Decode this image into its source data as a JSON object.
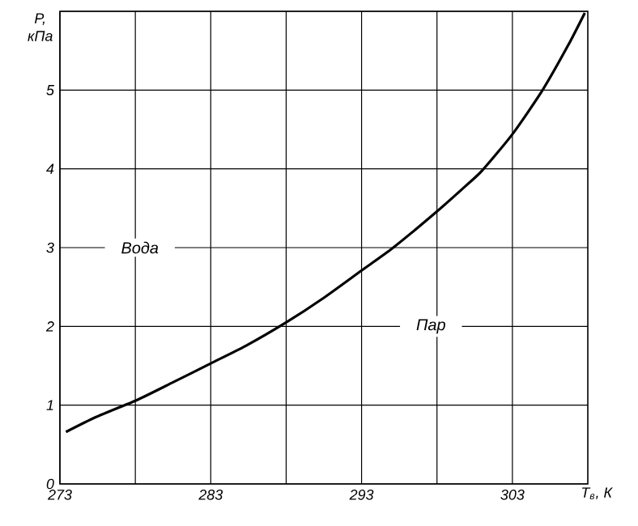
{
  "chart_data": {
    "type": "line",
    "xlabel": "T$_{в}$, К",
    "ylabel": "P, кПа",
    "annotations": [
      "Вода",
      "Пар"
    ],
    "x": [
      273.4,
      275.4,
      278.06,
      280.5,
      283,
      285.3,
      288,
      290.4,
      293,
      295.1,
      298,
      300,
      301,
      303,
      305,
      306.7,
      307.8
    ],
    "series": [
      {
        "color": "#000000",
        "values": [
          0.66,
          0.85,
          1.06,
          1.29,
          1.53,
          1.75,
          2.05,
          2.35,
          2.71,
          3.0,
          3.46,
          3.8,
          3.98,
          4.44,
          5.0,
          5.57,
          5.98
        ]
      }
    ],
    "xlim": [
      273,
      308
    ],
    "ylim": [
      0,
      6
    ],
    "xticks": [
      273,
      {
        "value": 278,
        "label": null
      },
      283,
      {
        "value": 288,
        "label": null
      },
      293,
      {
        "value": 298,
        "label": null
      },
      303
    ],
    "yticks": [
      0,
      1,
      2,
      3,
      4,
      5,
      {
        "value": 6,
        "label": null
      }
    ],
    "grid": true,
    "marker": "none",
    "line_style": "solid"
  }
}
